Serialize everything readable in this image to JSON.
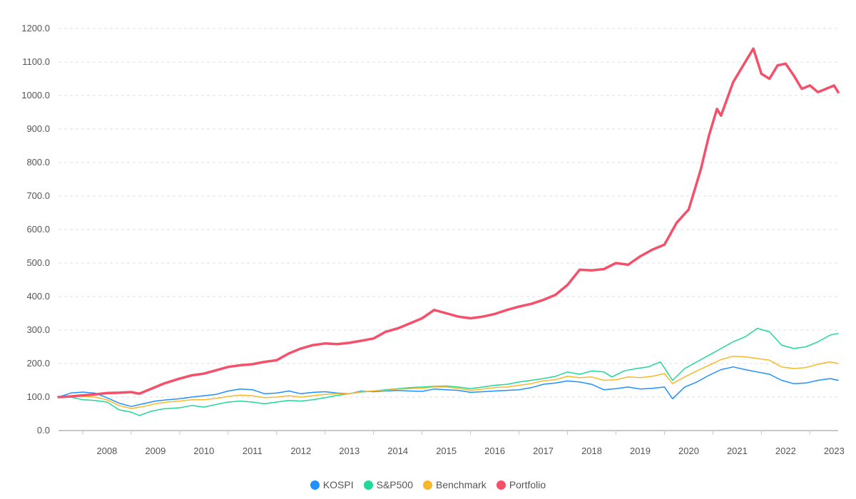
{
  "chart_data": {
    "type": "line",
    "x_start": "2007-07",
    "x_end": "2023-08",
    "x_ticks": [
      "2008",
      "2009",
      "2010",
      "2011",
      "2012",
      "2013",
      "2014",
      "2015",
      "2016",
      "2017",
      "2018",
      "2019",
      "2020",
      "2021",
      "2022",
      "2023"
    ],
    "y_ticks": [
      "0.0",
      "100.0",
      "200.0",
      "300.0",
      "400.0",
      "500.0",
      "600.0",
      "700.0",
      "800.0",
      "900.0",
      "1000.0",
      "1100.0",
      "1200.0"
    ],
    "ylim": [
      0,
      1200
    ],
    "grid": "horizontal dashed",
    "legend_position": "bottom-center",
    "series": [
      {
        "name": "KOSPI",
        "color": "#1e90ff",
        "points": [
          [
            "2007-07",
            100
          ],
          [
            "2007-10",
            112
          ],
          [
            "2008-01",
            115
          ],
          [
            "2008-04",
            112
          ],
          [
            "2008-07",
            98
          ],
          [
            "2008-10",
            82
          ],
          [
            "2009-01",
            72
          ],
          [
            "2009-04",
            80
          ],
          [
            "2009-07",
            88
          ],
          [
            "2009-10",
            92
          ],
          [
            "2010-01",
            95
          ],
          [
            "2010-04",
            100
          ],
          [
            "2010-07",
            104
          ],
          [
            "2010-10",
            108
          ],
          [
            "2011-01",
            118
          ],
          [
            "2011-04",
            124
          ],
          [
            "2011-07",
            122
          ],
          [
            "2011-10",
            110
          ],
          [
            "2012-01",
            112
          ],
          [
            "2012-04",
            118
          ],
          [
            "2012-07",
            110
          ],
          [
            "2012-10",
            114
          ],
          [
            "2013-01",
            116
          ],
          [
            "2013-04",
            112
          ],
          [
            "2013-07",
            110
          ],
          [
            "2013-10",
            118
          ],
          [
            "2014-01",
            116
          ],
          [
            "2014-04",
            118
          ],
          [
            "2014-07",
            120
          ],
          [
            "2014-10",
            118
          ],
          [
            "2015-01",
            117
          ],
          [
            "2015-04",
            124
          ],
          [
            "2015-07",
            122
          ],
          [
            "2015-10",
            120
          ],
          [
            "2016-01",
            114
          ],
          [
            "2016-04",
            116
          ],
          [
            "2016-07",
            118
          ],
          [
            "2016-10",
            120
          ],
          [
            "2017-01",
            122
          ],
          [
            "2017-04",
            128
          ],
          [
            "2017-07",
            138
          ],
          [
            "2017-10",
            142
          ],
          [
            "2018-01",
            148
          ],
          [
            "2018-04",
            145
          ],
          [
            "2018-07",
            138
          ],
          [
            "2018-10",
            122
          ],
          [
            "2019-01",
            125
          ],
          [
            "2019-04",
            130
          ],
          [
            "2019-07",
            124
          ],
          [
            "2019-10",
            126
          ],
          [
            "2020-01",
            130
          ],
          [
            "2020-03",
            95
          ],
          [
            "2020-06",
            130
          ],
          [
            "2020-09",
            145
          ],
          [
            "2020-12",
            165
          ],
          [
            "2021-03",
            182
          ],
          [
            "2021-06",
            190
          ],
          [
            "2021-09",
            182
          ],
          [
            "2021-12",
            175
          ],
          [
            "2022-03",
            168
          ],
          [
            "2022-06",
            150
          ],
          [
            "2022-09",
            140
          ],
          [
            "2022-12",
            142
          ],
          [
            "2023-03",
            150
          ],
          [
            "2023-06",
            155
          ],
          [
            "2023-08",
            150
          ]
        ]
      },
      {
        "name": "S&P500",
        "color": "#20d898",
        "points": [
          [
            "2007-07",
            100
          ],
          [
            "2007-10",
            100
          ],
          [
            "2008-01",
            92
          ],
          [
            "2008-04",
            90
          ],
          [
            "2008-07",
            85
          ],
          [
            "2008-10",
            62
          ],
          [
            "2009-01",
            55
          ],
          [
            "2009-03",
            45
          ],
          [
            "2009-06",
            58
          ],
          [
            "2009-09",
            65
          ],
          [
            "2010-01",
            68
          ],
          [
            "2010-04",
            75
          ],
          [
            "2010-07",
            70
          ],
          [
            "2010-10",
            78
          ],
          [
            "2011-01",
            85
          ],
          [
            "2011-04",
            88
          ],
          [
            "2011-07",
            85
          ],
          [
            "2011-10",
            80
          ],
          [
            "2012-01",
            85
          ],
          [
            "2012-04",
            90
          ],
          [
            "2012-07",
            88
          ],
          [
            "2012-10",
            92
          ],
          [
            "2013-01",
            98
          ],
          [
            "2013-04",
            105
          ],
          [
            "2013-07",
            110
          ],
          [
            "2013-10",
            115
          ],
          [
            "2014-01",
            118
          ],
          [
            "2014-04",
            122
          ],
          [
            "2014-07",
            125
          ],
          [
            "2014-10",
            128
          ],
          [
            "2015-01",
            130
          ],
          [
            "2015-04",
            132
          ],
          [
            "2015-07",
            133
          ],
          [
            "2015-10",
            130
          ],
          [
            "2016-01",
            125
          ],
          [
            "2016-04",
            130
          ],
          [
            "2016-07",
            135
          ],
          [
            "2016-10",
            138
          ],
          [
            "2017-01",
            145
          ],
          [
            "2017-04",
            150
          ],
          [
            "2017-07",
            155
          ],
          [
            "2017-10",
            162
          ],
          [
            "2018-01",
            175
          ],
          [
            "2018-04",
            168
          ],
          [
            "2018-07",
            178
          ],
          [
            "2018-10",
            175
          ],
          [
            "2018-12",
            160
          ],
          [
            "2019-03",
            178
          ],
          [
            "2019-06",
            185
          ],
          [
            "2019-09",
            190
          ],
          [
            "2019-12",
            205
          ],
          [
            "2020-03",
            150
          ],
          [
            "2020-06",
            185
          ],
          [
            "2020-09",
            205
          ],
          [
            "2020-12",
            225
          ],
          [
            "2021-03",
            245
          ],
          [
            "2021-06",
            265
          ],
          [
            "2021-09",
            280
          ],
          [
            "2021-12",
            305
          ],
          [
            "2022-03",
            295
          ],
          [
            "2022-06",
            255
          ],
          [
            "2022-09",
            245
          ],
          [
            "2022-12",
            250
          ],
          [
            "2023-03",
            265
          ],
          [
            "2023-06",
            285
          ],
          [
            "2023-08",
            290
          ]
        ]
      },
      {
        "name": "Benchmark",
        "color": "#f9b82a",
        "points": [
          [
            "2007-07",
            100
          ],
          [
            "2007-10",
            104
          ],
          [
            "2008-01",
            102
          ],
          [
            "2008-04",
            100
          ],
          [
            "2008-07",
            92
          ],
          [
            "2008-10",
            75
          ],
          [
            "2009-01",
            66
          ],
          [
            "2009-04",
            72
          ],
          [
            "2009-07",
            80
          ],
          [
            "2009-10",
            85
          ],
          [
            "2010-01",
            88
          ],
          [
            "2010-04",
            92
          ],
          [
            "2010-07",
            92
          ],
          [
            "2010-10",
            96
          ],
          [
            "2011-01",
            102
          ],
          [
            "2011-04",
            106
          ],
          [
            "2011-07",
            104
          ],
          [
            "2011-10",
            98
          ],
          [
            "2012-01",
            100
          ],
          [
            "2012-04",
            104
          ],
          [
            "2012-07",
            100
          ],
          [
            "2012-10",
            104
          ],
          [
            "2013-01",
            108
          ],
          [
            "2013-04",
            110
          ],
          [
            "2013-07",
            110
          ],
          [
            "2013-10",
            116
          ],
          [
            "2014-01",
            118
          ],
          [
            "2014-04",
            120
          ],
          [
            "2014-07",
            124
          ],
          [
            "2014-10",
            125
          ],
          [
            "2015-01",
            126
          ],
          [
            "2015-04",
            130
          ],
          [
            "2015-07",
            130
          ],
          [
            "2015-10",
            126
          ],
          [
            "2016-01",
            120
          ],
          [
            "2016-04",
            124
          ],
          [
            "2016-07",
            128
          ],
          [
            "2016-10",
            130
          ],
          [
            "2017-01",
            135
          ],
          [
            "2017-04",
            140
          ],
          [
            "2017-07",
            148
          ],
          [
            "2017-10",
            152
          ],
          [
            "2018-01",
            162
          ],
          [
            "2018-04",
            158
          ],
          [
            "2018-07",
            160
          ],
          [
            "2018-10",
            150
          ],
          [
            "2019-01",
            152
          ],
          [
            "2019-04",
            160
          ],
          [
            "2019-07",
            158
          ],
          [
            "2019-10",
            162
          ],
          [
            "2020-01",
            170
          ],
          [
            "2020-03",
            140
          ],
          [
            "2020-06",
            160
          ],
          [
            "2020-09",
            178
          ],
          [
            "2020-12",
            195
          ],
          [
            "2021-03",
            212
          ],
          [
            "2021-06",
            222
          ],
          [
            "2021-09",
            220
          ],
          [
            "2021-12",
            215
          ],
          [
            "2022-03",
            210
          ],
          [
            "2022-06",
            190
          ],
          [
            "2022-09",
            185
          ],
          [
            "2022-12",
            188
          ],
          [
            "2023-03",
            198
          ],
          [
            "2023-06",
            205
          ],
          [
            "2023-08",
            200
          ]
        ]
      },
      {
        "name": "Portfolio",
        "color": "#f5506a",
        "points": [
          [
            "2007-07",
            100
          ],
          [
            "2007-10",
            102
          ],
          [
            "2008-01",
            105
          ],
          [
            "2008-04",
            108
          ],
          [
            "2008-07",
            112
          ],
          [
            "2008-10",
            113
          ],
          [
            "2009-01",
            115
          ],
          [
            "2009-03",
            110
          ],
          [
            "2009-06",
            125
          ],
          [
            "2009-09",
            140
          ],
          [
            "2010-01",
            155
          ],
          [
            "2010-04",
            165
          ],
          [
            "2010-07",
            170
          ],
          [
            "2010-10",
            180
          ],
          [
            "2011-01",
            190
          ],
          [
            "2011-04",
            195
          ],
          [
            "2011-07",
            198
          ],
          [
            "2011-10",
            205
          ],
          [
            "2012-01",
            210
          ],
          [
            "2012-04",
            230
          ],
          [
            "2012-07",
            245
          ],
          [
            "2012-10",
            255
          ],
          [
            "2013-01",
            260
          ],
          [
            "2013-04",
            258
          ],
          [
            "2013-07",
            262
          ],
          [
            "2013-10",
            268
          ],
          [
            "2014-01",
            275
          ],
          [
            "2014-04",
            295
          ],
          [
            "2014-07",
            305
          ],
          [
            "2014-10",
            320
          ],
          [
            "2015-01",
            335
          ],
          [
            "2015-04",
            360
          ],
          [
            "2015-07",
            350
          ],
          [
            "2015-10",
            340
          ],
          [
            "2016-01",
            335
          ],
          [
            "2016-04",
            340
          ],
          [
            "2016-07",
            348
          ],
          [
            "2016-10",
            360
          ],
          [
            "2017-01",
            370
          ],
          [
            "2017-04",
            378
          ],
          [
            "2017-07",
            390
          ],
          [
            "2017-10",
            405
          ],
          [
            "2018-01",
            435
          ],
          [
            "2018-04",
            480
          ],
          [
            "2018-07",
            478
          ],
          [
            "2018-10",
            482
          ],
          [
            "2019-01",
            500
          ],
          [
            "2019-04",
            495
          ],
          [
            "2019-07",
            520
          ],
          [
            "2019-10",
            540
          ],
          [
            "2020-01",
            555
          ],
          [
            "2020-04",
            620
          ],
          [
            "2020-07",
            660
          ],
          [
            "2020-10",
            780
          ],
          [
            "2020-12",
            880
          ],
          [
            "2021-02",
            960
          ],
          [
            "2021-03",
            940
          ],
          [
            "2021-06",
            1040
          ],
          [
            "2021-09",
            1100
          ],
          [
            "2021-11",
            1140
          ],
          [
            "2022-01",
            1065
          ],
          [
            "2022-03",
            1050
          ],
          [
            "2022-05",
            1090
          ],
          [
            "2022-07",
            1095
          ],
          [
            "2022-09",
            1060
          ],
          [
            "2022-11",
            1020
          ],
          [
            "2023-01",
            1030
          ],
          [
            "2023-03",
            1010
          ],
          [
            "2023-05",
            1020
          ],
          [
            "2023-07",
            1030
          ],
          [
            "2023-08",
            1010
          ]
        ]
      }
    ]
  }
}
